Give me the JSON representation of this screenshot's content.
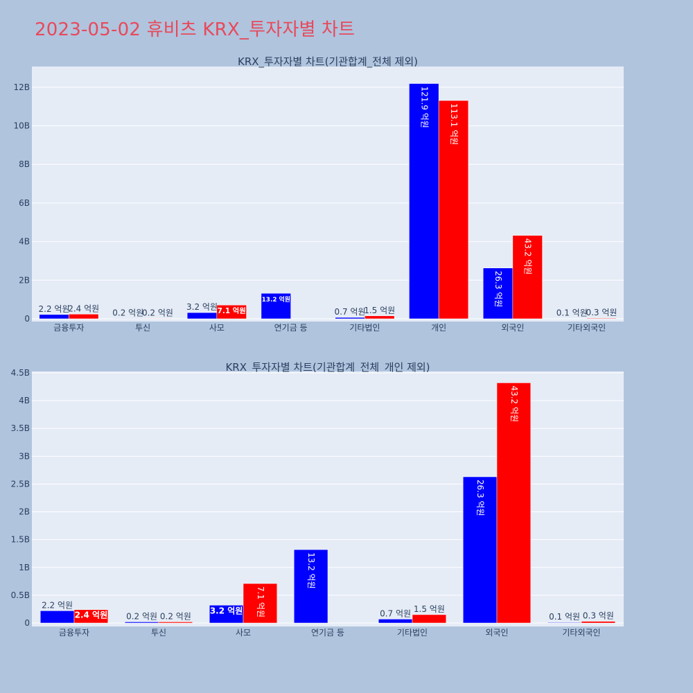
{
  "title": "2023-05-02 휴비츠 KRX_투자자별 차트",
  "colors": {
    "background": "#b0c4de",
    "plot_bg": "#e5ecf6",
    "title": "#e8495a",
    "buy": "#0000ff",
    "sell": "#ff0000"
  },
  "chart_data": [
    {
      "type": "bar",
      "title": "KRX_투자자별 차트(기관합계_전체 제외)",
      "categories": [
        "금융투자",
        "투신",
        "사모",
        "연기금 등",
        "기타법인",
        "개인",
        "외국인",
        "기타외국인"
      ],
      "ylim": [
        0,
        13
      ],
      "yticks": [
        0,
        2,
        4,
        6,
        8,
        10,
        12
      ],
      "ytick_labels": [
        "0",
        "2B",
        "4B",
        "6B",
        "8B",
        "10B",
        "12B"
      ],
      "grid": true,
      "series": [
        {
          "color": "#0000ff",
          "values": [
            0.22,
            0.02,
            0.32,
            1.32,
            0.07,
            12.19,
            2.63,
            0.01
          ],
          "labels": [
            "2.2 억원",
            "0.2 억원",
            "3.2 억원",
            "13.2 억원",
            "0.7 억원",
            "121.9 억원",
            "26.3 억원",
            "0.1 억원"
          ]
        },
        {
          "color": "#ff0000",
          "values": [
            0.24,
            0.02,
            0.71,
            0,
            0.15,
            11.31,
            4.32,
            0.03
          ],
          "labels": [
            "2.4 억원",
            "0.2 억원",
            "7.1 억원",
            "",
            "1.5 억원",
            "113.1 억원",
            "43.2 억원",
            "0.3 억원"
          ]
        }
      ]
    },
    {
      "type": "bar",
      "title": "KRX_투자자별 차트(기관합계_전체_개인 제외)",
      "categories": [
        "금융투자",
        "투신",
        "사모",
        "연기금 등",
        "기타법인",
        "외국인",
        "기타외국인"
      ],
      "ylim": [
        0,
        4.5
      ],
      "yticks": [
        0,
        0.5,
        1,
        1.5,
        2,
        2.5,
        3,
        3.5,
        4,
        4.5
      ],
      "ytick_labels": [
        "0",
        "0.5B",
        "1B",
        "1.5B",
        "2B",
        "2.5B",
        "3B",
        "3.5B",
        "4B",
        "4.5B"
      ],
      "grid": true,
      "series": [
        {
          "color": "#0000ff",
          "values": [
            0.22,
            0.02,
            0.32,
            1.32,
            0.07,
            2.63,
            0.01
          ],
          "labels": [
            "2.2 억원",
            "0.2 억원",
            "3.2 억원",
            "13.2 억원",
            "0.7 억원",
            "26.3 억원",
            "0.1 억원"
          ]
        },
        {
          "color": "#ff0000",
          "values": [
            0.24,
            0.02,
            0.71,
            0,
            0.15,
            4.32,
            0.03
          ],
          "labels": [
            "2.4 억원",
            "0.2 억원",
            "7.1 억원",
            "",
            "1.5 억원",
            "43.2 억원",
            "0.3 억원"
          ]
        }
      ]
    }
  ]
}
